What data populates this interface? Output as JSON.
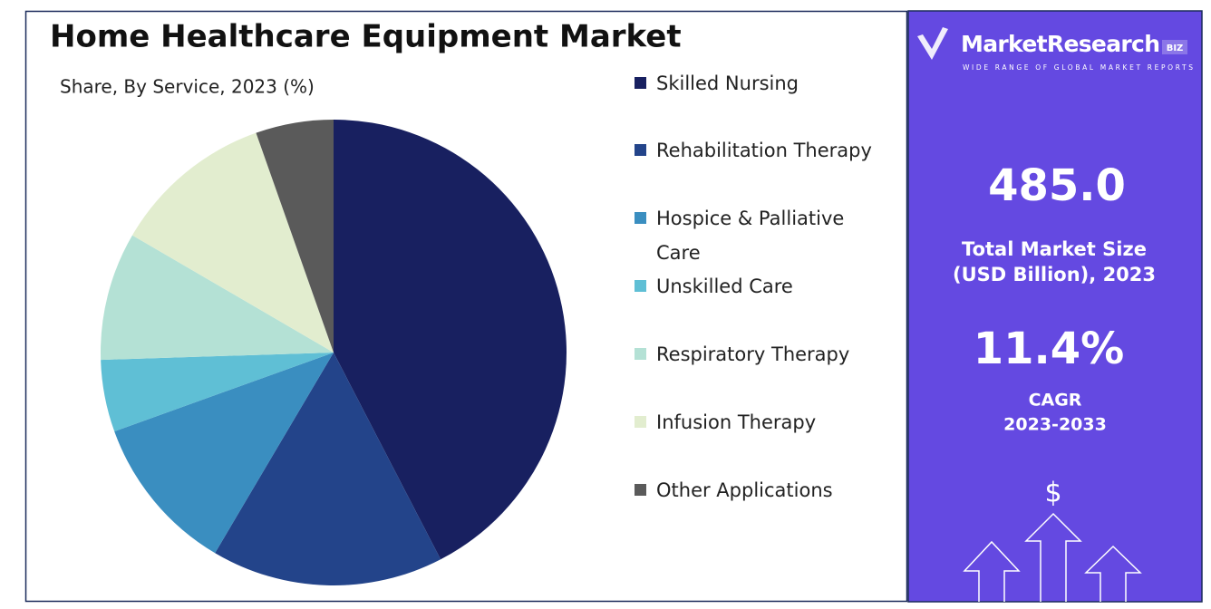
{
  "chart_data": {
    "type": "pie",
    "title": "Home Healthcare Equipment Market",
    "subtitle": "Share, By Service, 2023 (%)",
    "categories": [
      "Skilled Nursing",
      "Rehabilitation Therapy",
      "Hospice & Palliative Care",
      "Unskilled Care",
      "Respiratory Therapy",
      "Infusion Therapy",
      "Other Applications"
    ],
    "values": [
      42.4,
      16.1,
      11.0,
      5.0,
      8.9,
      11.2,
      5.4
    ],
    "colors": [
      "#182060",
      "#23448a",
      "#3a8ec0",
      "#5fbfd5",
      "#b4e1d5",
      "#e2edcf",
      "#5a5a5a"
    ]
  },
  "panel": {
    "brand": "MarketResearch",
    "brand_tag": "BIZ",
    "tagline": "WIDE RANGE OF GLOBAL MARKET REPORTS",
    "market_size": "485.0",
    "market_size_label": [
      "Total Market Size",
      "(USD Billion), 2023"
    ],
    "cagr": "11.4%",
    "cagr_label": [
      "CAGR",
      "2023-2033"
    ],
    "currency_icon": "$"
  }
}
